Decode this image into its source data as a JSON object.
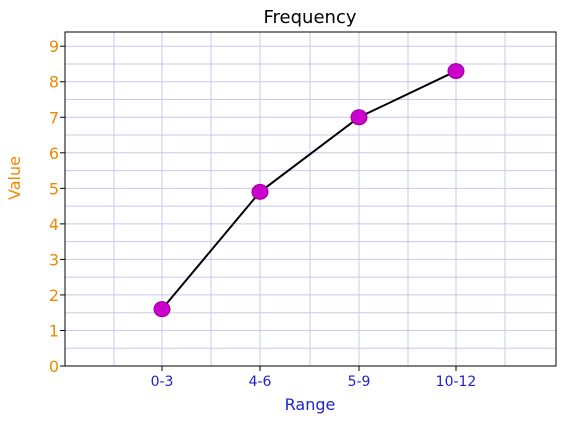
{
  "chart_data": {
    "type": "line",
    "title": "Frequency",
    "xlabel": "Range",
    "ylabel": "Value",
    "categories": [
      "0-3",
      "4-6",
      "5-9",
      "10-12"
    ],
    "series": [
      {
        "values": [
          1.6,
          4.9,
          7.0,
          8.3
        ]
      }
    ],
    "ylim": [
      0,
      9.4
    ],
    "yticks": [
      0,
      1,
      2,
      3,
      4,
      5,
      6,
      7,
      8,
      9
    ],
    "grid": true,
    "colors": {
      "line": "#000000",
      "marker": "#cc00cc",
      "grid": "#c8c8f0",
      "xtick_text": "#2222cc",
      "ytick_text": "#ee8800",
      "xlabel_text": "#2222cc",
      "ylabel_text": "#ee8800"
    }
  }
}
